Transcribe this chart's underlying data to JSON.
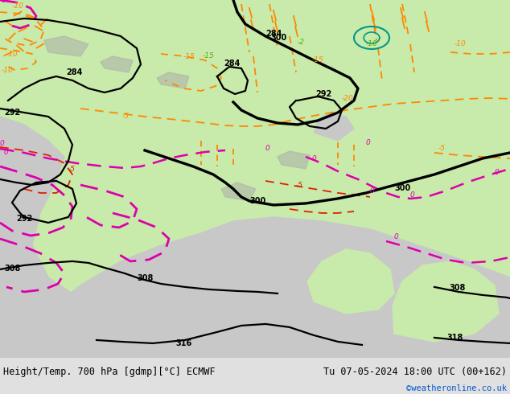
{
  "title_left": "Height/Temp. 700 hPa [gdmp][°C] ECMWF",
  "title_right": "Tu 07-05-2024 18:00 UTC (00+162)",
  "watermark": "©weatheronline.co.uk",
  "bg_color": "#e0e0e0",
  "land_color_light": "#c8eaaa",
  "land_color_med": "#b8d898",
  "sea_color": "#c8c8c8",
  "bottom_bar_color": "#d8d8d8",
  "font_size_title": 8.5,
  "font_size_watermark": 7.5,
  "black_lw": 1.6,
  "thick_lw": 2.4,
  "orange": "#FF8800",
  "red": "#DD2200",
  "magenta": "#DD00AA",
  "teal": "#009988",
  "green_label": "#55AA00"
}
